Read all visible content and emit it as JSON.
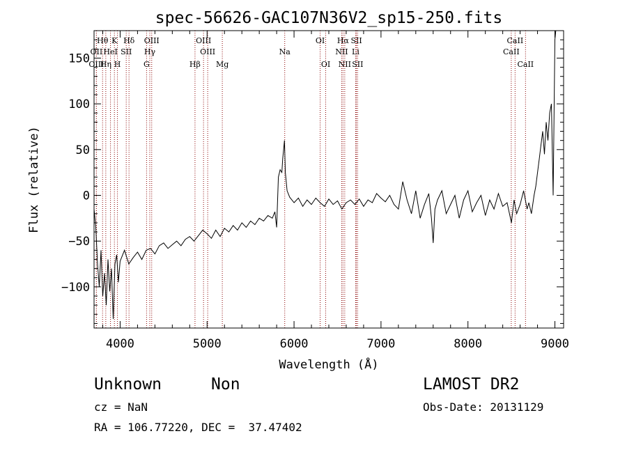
{
  "chart_data": {
    "type": "line",
    "title": "spec-56626-GAC107N36V2_sp15-250.fits",
    "xlabel": "Wavelength (Å)",
    "ylabel": "Flux (relative)",
    "xlim": [
      3700,
      9100
    ],
    "ylim": [
      -145,
      180
    ],
    "x_ticks": [
      4000,
      5000,
      6000,
      7000,
      8000,
      9000
    ],
    "y_ticks": [
      -100,
      -50,
      0,
      50,
      100,
      150
    ],
    "grid": false,
    "line_color": "#000000",
    "marker_color": "#8b0000",
    "spectral_lines": [
      {
        "label": "Hθ",
        "wavelength": 3798,
        "row": 0
      },
      {
        "label": "OII",
        "wavelength": 3727,
        "row": 1
      },
      {
        "label": "OIII",
        "wavelength": 3727,
        "row": 2
      },
      {
        "label": "K",
        "wavelength": 3934,
        "row": 0
      },
      {
        "label": "HeI",
        "wavelength": 3889,
        "row": 1
      },
      {
        "label": "Hη",
        "wavelength": 3835,
        "row": 2
      },
      {
        "label": "H",
        "wavelength": 3969,
        "row": 2
      },
      {
        "label": "SII",
        "wavelength": 4070,
        "row": 1
      },
      {
        "label": "Hδ",
        "wavelength": 4102,
        "row": 0
      },
      {
        "label": "OIII",
        "wavelength": 4363,
        "row": 0
      },
      {
        "label": "Hγ",
        "wavelength": 4341,
        "row": 1
      },
      {
        "label": "G",
        "wavelength": 4304,
        "row": 2
      },
      {
        "label": "OIII",
        "wavelength": 4959,
        "row": 0
      },
      {
        "label": "OIII",
        "wavelength": 5007,
        "row": 1
      },
      {
        "label": "Hβ",
        "wavelength": 4861,
        "row": 2
      },
      {
        "label": "Mg",
        "wavelength": 5175,
        "row": 2
      },
      {
        "label": "Na",
        "wavelength": 5893,
        "row": 1
      },
      {
        "label": "OI",
        "wavelength": 6300,
        "row": 0
      },
      {
        "label": "OI",
        "wavelength": 6364,
        "row": 2
      },
      {
        "label": "Hα",
        "wavelength": 6563,
        "row": 0
      },
      {
        "label": "NII",
        "wavelength": 6548,
        "row": 1
      },
      {
        "label": "NII",
        "wavelength": 6583,
        "row": 2
      },
      {
        "label": "SII",
        "wavelength": 6717,
        "row": 0
      },
      {
        "label": "Li",
        "wavelength": 6708,
        "row": 1
      },
      {
        "label": "SII",
        "wavelength": 6731,
        "row": 2
      },
      {
        "label": "CaII",
        "wavelength": 8542,
        "row": 0
      },
      {
        "label": "CaII",
        "wavelength": 8498,
        "row": 1
      },
      {
        "label": "CaII",
        "wavelength": 8662,
        "row": 2
      }
    ],
    "series": [
      {
        "x": [
          3700,
          3720,
          3740,
          3760,
          3780,
          3800,
          3820,
          3840,
          3860,
          3880,
          3900,
          3920,
          3940,
          3960,
          3980,
          4000,
          4050,
          4100,
          4150,
          4200,
          4250,
          4300,
          4350,
          4400,
          4450,
          4500,
          4550,
          4600,
          4650,
          4700,
          4750,
          4800,
          4850,
          4900,
          4950,
          5000,
          5050,
          5100,
          5150,
          5200,
          5250,
          5300,
          5350,
          5400,
          5450,
          5500,
          5550,
          5600,
          5650,
          5700,
          5750,
          5780,
          5800,
          5820,
          5840,
          5860,
          5870,
          5880,
          5890,
          5900,
          5920,
          5950,
          6000,
          6050,
          6100,
          6150,
          6200,
          6250,
          6300,
          6350,
          6400,
          6450,
          6500,
          6550,
          6600,
          6650,
          6700,
          6750,
          6800,
          6850,
          6900,
          6950,
          7000,
          7050,
          7100,
          7150,
          7200,
          7250,
          7300,
          7350,
          7400,
          7450,
          7500,
          7550,
          7580,
          7600,
          7620,
          7650,
          7700,
          7750,
          7800,
          7850,
          7900,
          7950,
          8000,
          8050,
          8100,
          8150,
          8200,
          8250,
          8300,
          8350,
          8400,
          8450,
          8500,
          8530,
          8560,
          8600,
          8640,
          8680,
          8700,
          8730,
          8760,
          8780,
          8800,
          8820,
          8840,
          8860,
          8880,
          8900,
          8920,
          8940,
          8960,
          8980,
          9000,
          9010
        ],
        "y": [
          -15,
          -35,
          -75,
          -100,
          -60,
          -110,
          -85,
          -120,
          -70,
          -105,
          -80,
          -135,
          -75,
          -65,
          -95,
          -72,
          -60,
          -75,
          -68,
          -62,
          -70,
          -60,
          -58,
          -64,
          -55,
          -52,
          -58,
          -54,
          -50,
          -55,
          -48,
          -45,
          -50,
          -44,
          -38,
          -42,
          -47,
          -38,
          -45,
          -36,
          -40,
          -33,
          -38,
          -30,
          -35,
          -28,
          -32,
          -25,
          -28,
          -22,
          -25,
          -18,
          -35,
          20,
          28,
          25,
          40,
          50,
          60,
          25,
          5,
          -2,
          -8,
          -3,
          -12,
          -5,
          -10,
          -3,
          -8,
          -12,
          -4,
          -10,
          -6,
          -15,
          -8,
          -5,
          -10,
          -4,
          -12,
          -5,
          -8,
          2,
          -3,
          -7,
          0,
          -10,
          -15,
          15,
          -5,
          -20,
          5,
          -25,
          -10,
          2,
          -25,
          -52,
          -15,
          -5,
          5,
          -20,
          -10,
          0,
          -25,
          -5,
          5,
          -18,
          -8,
          0,
          -22,
          -5,
          -15,
          2,
          -12,
          -8,
          -30,
          -5,
          -20,
          -10,
          5,
          -15,
          -8,
          -20,
          0,
          10,
          25,
          40,
          55,
          70,
          45,
          80,
          60,
          90,
          100,
          0,
          170,
          180
        ]
      }
    ]
  },
  "info": {
    "object_class": "Unknown",
    "object_subclass": "Non",
    "cz_text": "cz = NaN",
    "coords_text": "RA = 106.77220, DEC =  37.47402",
    "survey": "LAMOST DR2",
    "obs_date_text": "Obs-Date: 20131129"
  }
}
